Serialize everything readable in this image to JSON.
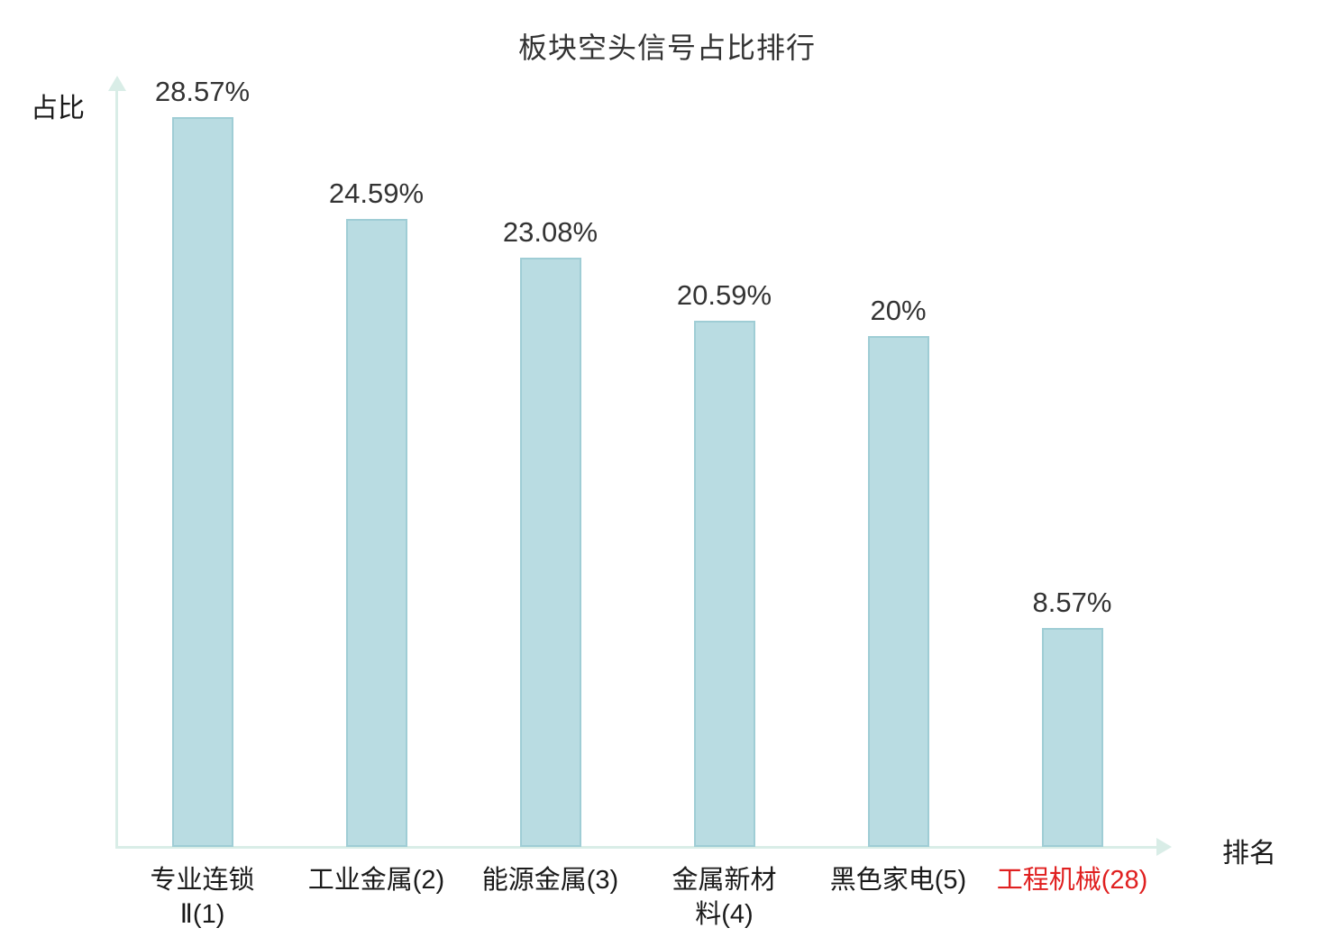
{
  "chart_data": {
    "type": "bar",
    "title": "板块空头信号占比排行",
    "xlabel": "排名",
    "ylabel": "占比",
    "categories": [
      "专业连锁Ⅱ(1)",
      "工业金属(2)",
      "能源金属(3)",
      "金属新材料(4)",
      "黑色家电(5)",
      "工程机械(28)"
    ],
    "category_display_lines": [
      [
        "专业连锁",
        "Ⅱ(1)"
      ],
      [
        "工业金属(2)"
      ],
      [
        "能源金属(3)"
      ],
      [
        "金属新材",
        "料(4)"
      ],
      [
        "黑色家电(5)"
      ],
      [
        "工程机械(28)"
      ]
    ],
    "values": [
      28.57,
      24.59,
      23.08,
      20.59,
      20,
      8.57
    ],
    "value_labels": [
      "28.57%",
      "24.59%",
      "23.08%",
      "20.59%",
      "20%",
      "8.57%"
    ],
    "highlight_index": 5,
    "ylim": [
      0,
      30
    ],
    "legend": "none",
    "grid": "off",
    "colors": {
      "bar_fill": "#b9dce2",
      "bar_border": "#9fcdd5",
      "axis": "#d9ede7",
      "text": "#333333",
      "category_text": "#1a1a1a",
      "highlight_text": "#e02020"
    }
  }
}
